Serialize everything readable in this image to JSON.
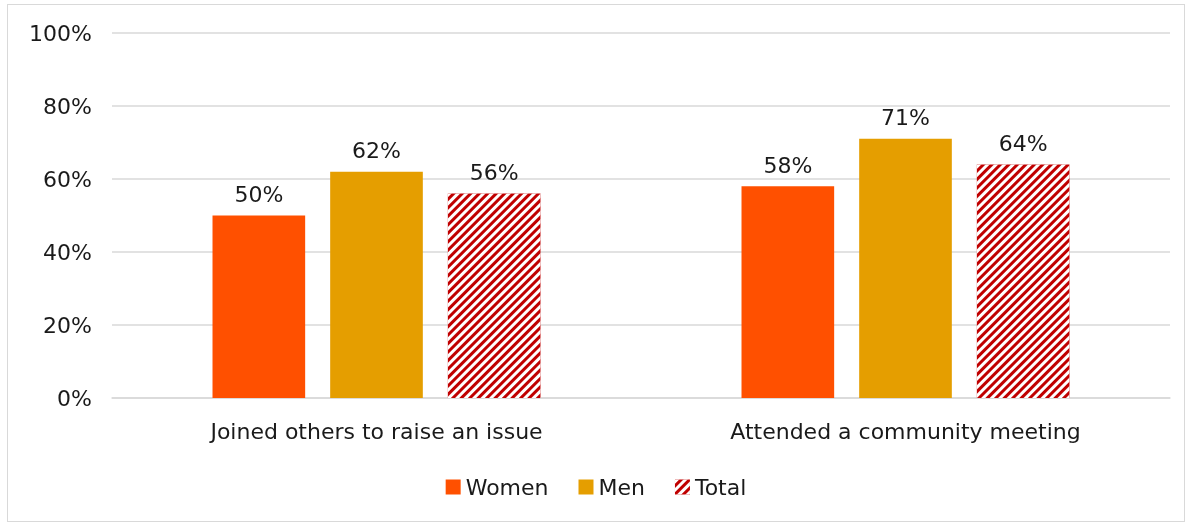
{
  "chart_data": {
    "type": "bar",
    "categories": [
      "Joined others to raise an issue",
      "Attended a community meeting"
    ],
    "series": [
      {
        "name": "Women",
        "color": "#ff5000",
        "values": [
          50,
          58
        ],
        "value_labels": [
          "50%",
          "58%"
        ]
      },
      {
        "name": "Men",
        "color": "#e59e00",
        "values": [
          62,
          71
        ],
        "value_labels": [
          "62%",
          "71%"
        ]
      },
      {
        "name": "Total",
        "color": "#c00000",
        "values": [
          56,
          64
        ],
        "value_labels": [
          "56%",
          "64%"
        ]
      }
    ],
    "ylim": [
      0,
      100
    ],
    "yticks": [
      {
        "value": 0,
        "label": "0%"
      },
      {
        "value": 20,
        "label": "20%"
      },
      {
        "value": 40,
        "label": "40%"
      },
      {
        "value": 60,
        "label": "60%"
      },
      {
        "value": 80,
        "label": "80%"
      },
      {
        "value": 100,
        "label": "100%"
      }
    ],
    "grid": "y",
    "legend": "bottom"
  }
}
